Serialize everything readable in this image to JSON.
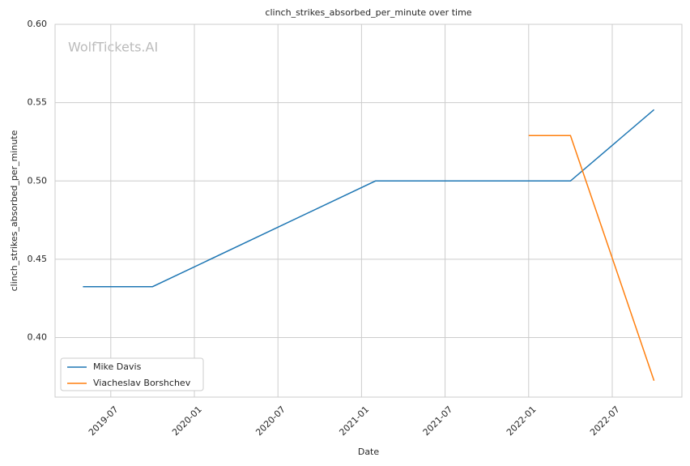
{
  "chart_data": {
    "type": "line",
    "title": "clinch_strikes_absorbed_per_minute over time",
    "x_label": "Date",
    "y_label": "clinch_strikes_absorbed_per_minute",
    "watermark": "WolfTickets.AI",
    "series": [
      {
        "name": "Mike Davis",
        "color": "#1f77b4",
        "x": [
          "2019-05",
          "2019-10",
          "2021-02",
          "2022-04",
          "2022-10"
        ],
        "values": [
          0.4325,
          0.4325,
          0.5,
          0.5,
          0.5455
        ]
      },
      {
        "name": "Viacheslav Borshchev",
        "color": "#ff7f0e",
        "x": [
          "2022-01",
          "2022-04",
          "2022-10"
        ],
        "values": [
          0.529,
          0.529,
          0.3725
        ]
      }
    ],
    "xlim": [
      "2019-03",
      "2022-12"
    ],
    "xticks": [
      "2019-07",
      "2020-01",
      "2020-07",
      "2021-01",
      "2021-07",
      "2022-01",
      "2022-07"
    ],
    "ylim": [
      0.362,
      0.6
    ],
    "yticks": [
      {
        "value": 0.4,
        "label": "0.40"
      },
      0.45,
      {
        "value": 0.5,
        "label": "0.50"
      },
      0.55,
      {
        "value": 0.6,
        "label": "0.60"
      }
    ],
    "grid": true,
    "legend": "lower left"
  }
}
